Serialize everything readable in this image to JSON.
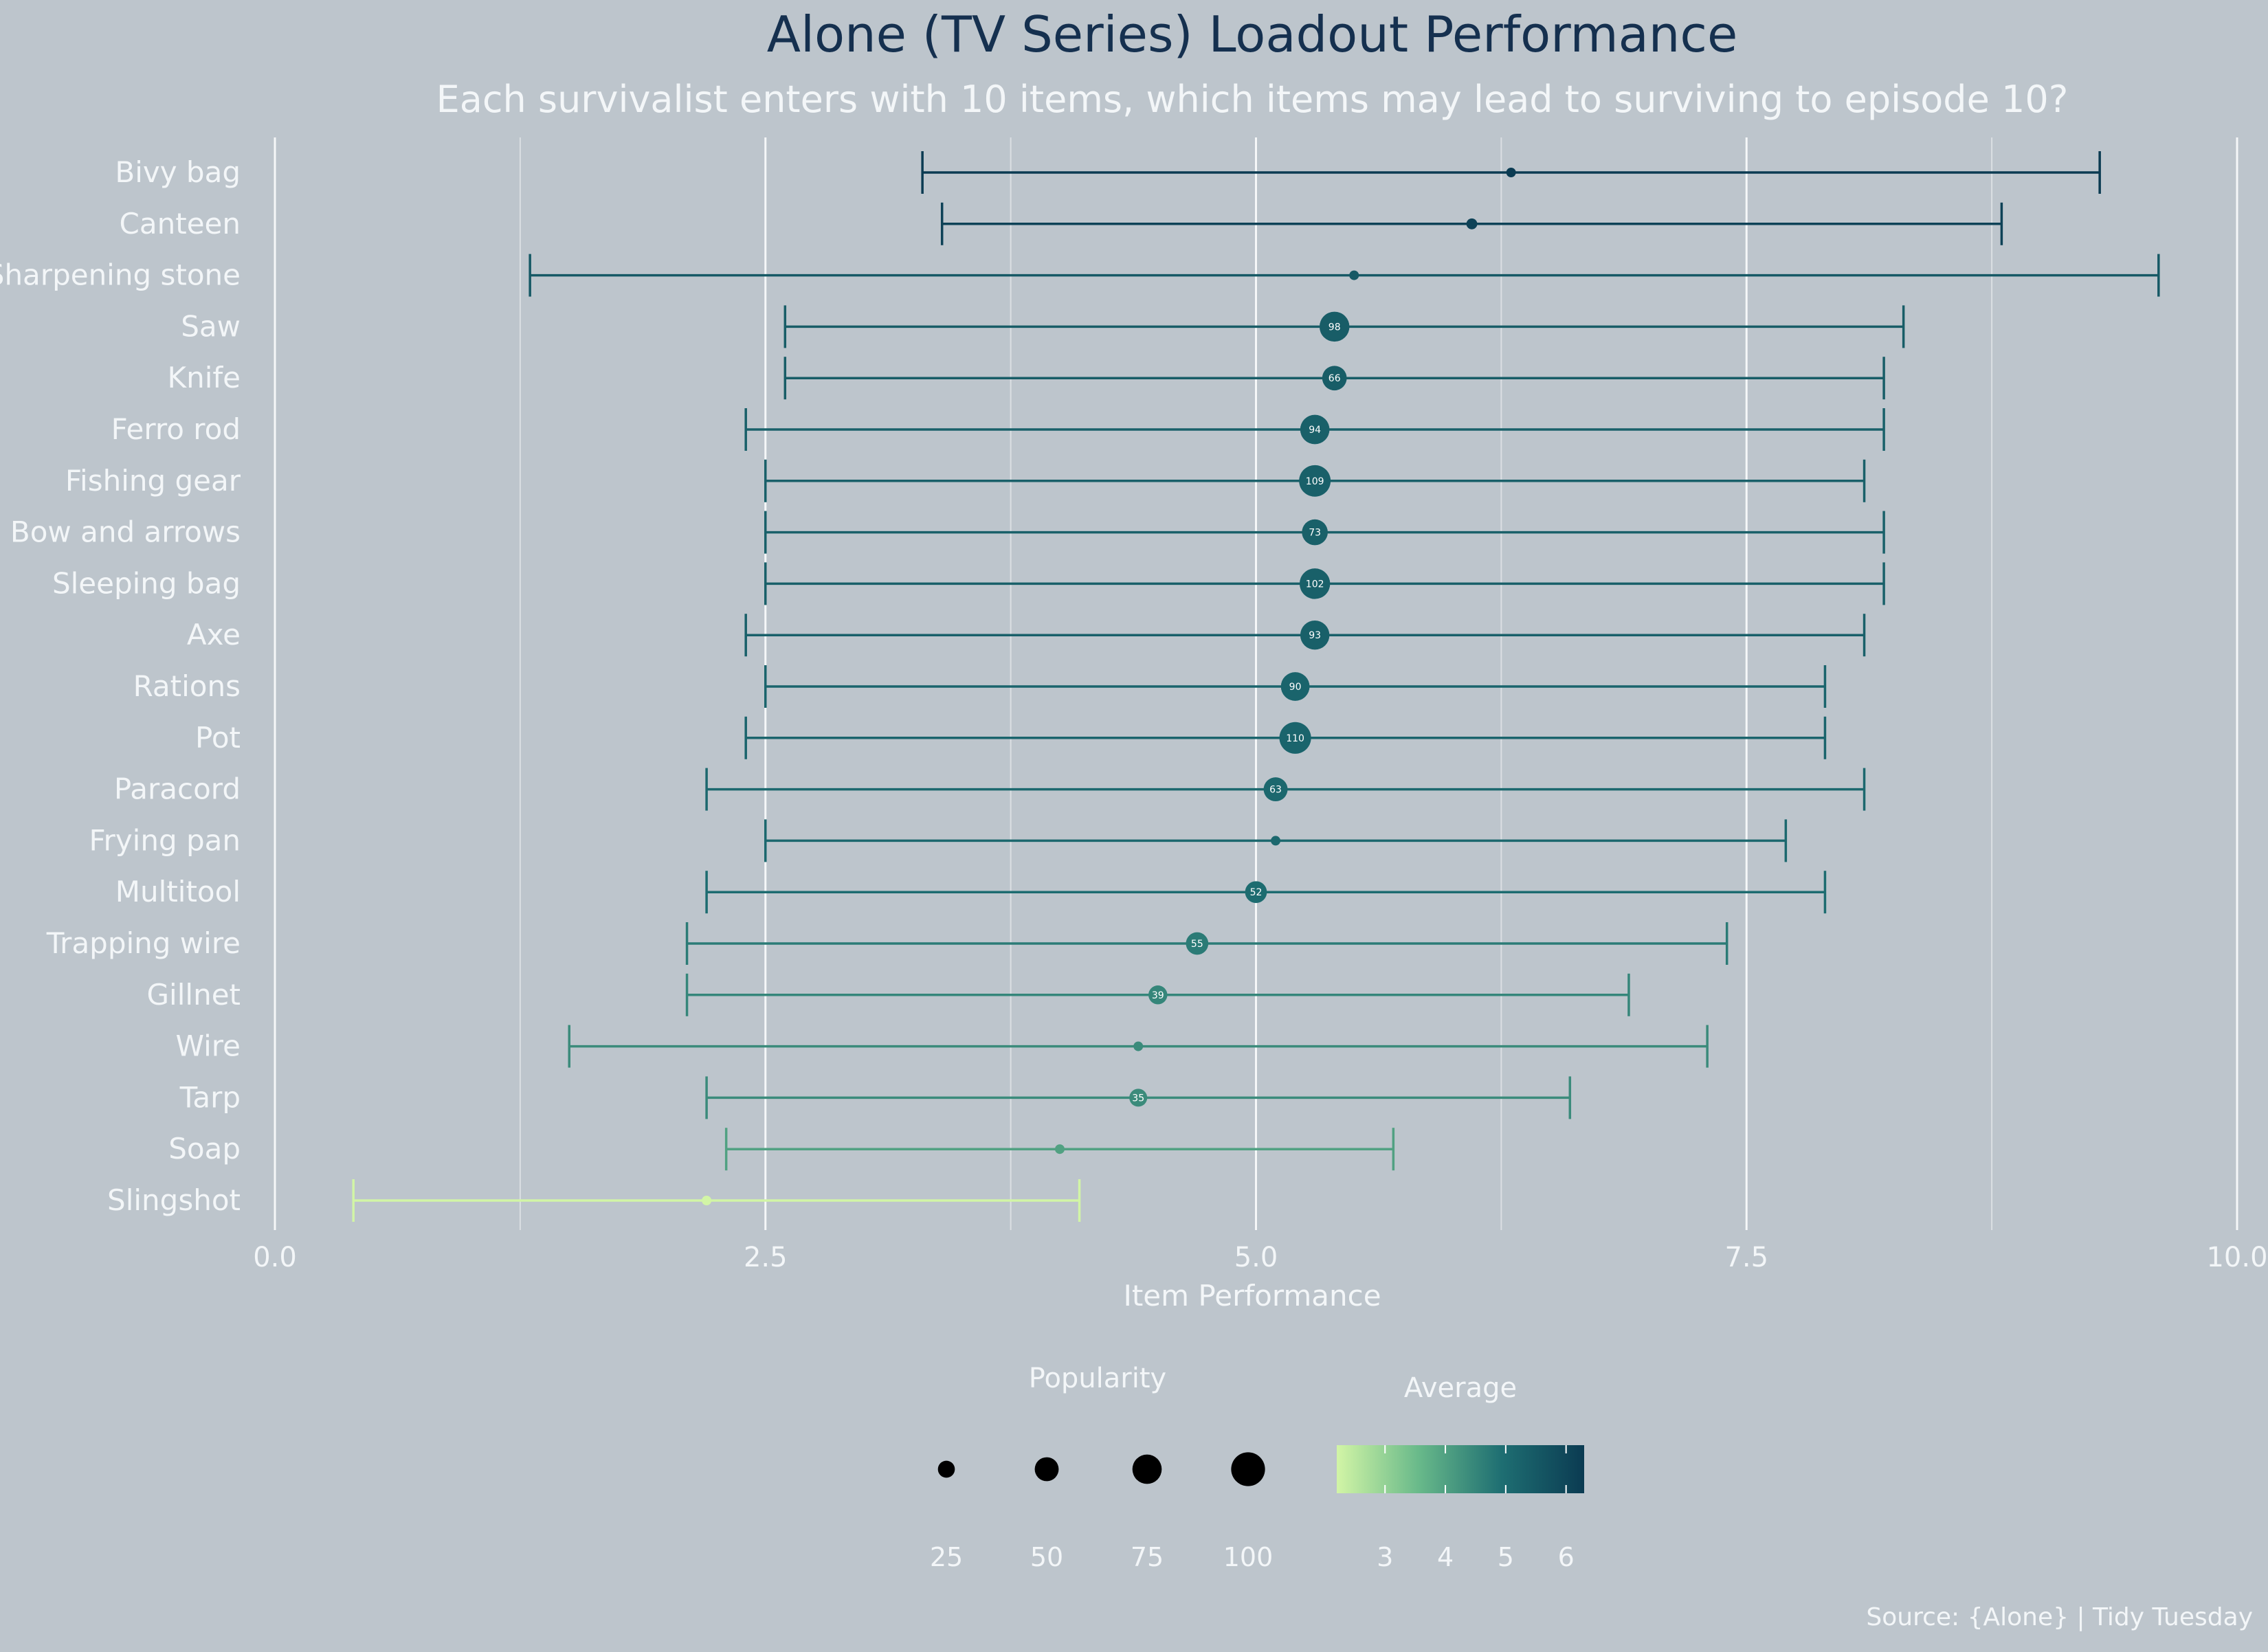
{
  "chart_data": {
    "type": "scatter",
    "title": "Alone (TV Series) Loadout Performance",
    "subtitle": "Each survivalist enters with 10 items, which items may lead to surviving to episode 10?",
    "xlabel": "Item Performance",
    "ylabel": "",
    "xlim": [
      0,
      10
    ],
    "x_ticks": [
      0.0,
      2.5,
      5.0,
      7.5,
      10.0
    ],
    "x_tick_labels": [
      "0.0",
      "2.5",
      "5.0",
      "7.5",
      "10.0"
    ],
    "grid": "vertical",
    "caption": "Source: {Alone} | Tidy Tuesday",
    "encoding": {
      "point": "average",
      "error_bar": "min to max",
      "point_size": "popularity",
      "color": "average"
    },
    "items": [
      {
        "name": "Bivy bag",
        "low": 3.3,
        "high": 9.3,
        "average": 6.3,
        "popularity": 6
      },
      {
        "name": "Canteen",
        "low": 3.4,
        "high": 8.8,
        "average": 6.1,
        "popularity": 13
      },
      {
        "name": "Sharpening stone",
        "low": 1.3,
        "high": 9.6,
        "average": 5.5,
        "popularity": 4
      },
      {
        "name": "Saw",
        "low": 2.6,
        "high": 8.3,
        "average": 5.4,
        "popularity": 98
      },
      {
        "name": "Knife",
        "low": 2.6,
        "high": 8.2,
        "average": 5.4,
        "popularity": 66
      },
      {
        "name": "Ferro rod",
        "low": 2.4,
        "high": 8.2,
        "average": 5.3,
        "popularity": 94
      },
      {
        "name": "Fishing gear",
        "low": 2.5,
        "high": 8.1,
        "average": 5.3,
        "popularity": 109
      },
      {
        "name": "Bow and arrows",
        "low": 2.5,
        "high": 8.2,
        "average": 5.3,
        "popularity": 73
      },
      {
        "name": "Sleeping bag",
        "low": 2.5,
        "high": 8.2,
        "average": 5.3,
        "popularity": 102
      },
      {
        "name": "Axe",
        "low": 2.4,
        "high": 8.1,
        "average": 5.3,
        "popularity": 93
      },
      {
        "name": "Rations",
        "low": 2.5,
        "high": 7.9,
        "average": 5.2,
        "popularity": 90
      },
      {
        "name": "Pot",
        "low": 2.4,
        "high": 7.9,
        "average": 5.2,
        "popularity": 110
      },
      {
        "name": "Paracord",
        "low": 2.2,
        "high": 8.1,
        "average": 5.1,
        "popularity": 63
      },
      {
        "name": "Frying pan",
        "low": 2.5,
        "high": 7.7,
        "average": 5.1,
        "popularity": 9
      },
      {
        "name": "Multitool",
        "low": 2.2,
        "high": 7.9,
        "average": 5.0,
        "popularity": 52
      },
      {
        "name": "Trapping wire",
        "low": 2.1,
        "high": 7.4,
        "average": 4.7,
        "popularity": 55
      },
      {
        "name": "Gillnet",
        "low": 2.1,
        "high": 6.9,
        "average": 4.5,
        "popularity": 39
      },
      {
        "name": "Wire",
        "low": 1.5,
        "high": 7.3,
        "average": 4.4,
        "popularity": 10
      },
      {
        "name": "Tarp",
        "low": 2.2,
        "high": 6.6,
        "average": 4.4,
        "popularity": 35
      },
      {
        "name": "Soap",
        "low": 2.3,
        "high": 5.7,
        "average": 4.0,
        "popularity": 4
      },
      {
        "name": "Slingshot",
        "low": 0.4,
        "high": 4.1,
        "average": 2.2,
        "popularity": 8
      }
    ],
    "legend": {
      "placement": "bottom",
      "size_title": "Popularity",
      "size_values": [
        25,
        50,
        75,
        100
      ],
      "color_title": "Average",
      "color_ticks": [
        3,
        4,
        5,
        6
      ],
      "color_range": [
        2.2,
        6.3
      ],
      "color_stops": [
        "#d2f5a6",
        "#68b98a",
        "#1e6e72",
        "#0b3b52"
      ]
    }
  }
}
